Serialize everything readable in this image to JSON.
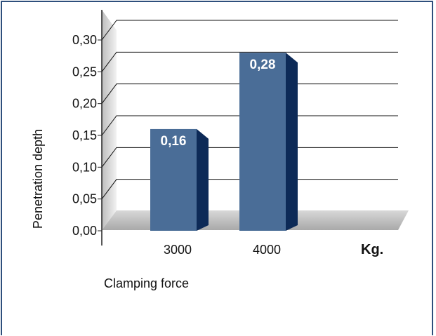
{
  "chart_data": {
    "type": "bar",
    "categories": [
      "3000",
      "4000"
    ],
    "values": [
      0.16,
      0.28
    ],
    "data_labels": [
      "0,16",
      "0,28"
    ],
    "yticks": [
      "0,00",
      "0,05",
      "0,10",
      "0,15",
      "0,20",
      "0,25",
      "0,30"
    ],
    "ylim": [
      0,
      0.3
    ],
    "xlabel": "Clamping force",
    "ylabel": "Penetration depth",
    "unit_label": "Kg.",
    "grid": true,
    "bar_color": "#4a6d97",
    "bar_side_color": "#0d2a57",
    "floor_color": "#c2c2c2"
  }
}
